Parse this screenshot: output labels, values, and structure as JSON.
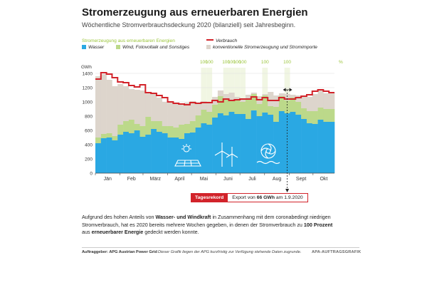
{
  "title": "Stromerzeugung aus erneuerbaren Energien",
  "subtitle": "Wöchentliche Stromverbrauchsdeckung 2020 (bilanziell) seit Jahresbeginn.",
  "legend": {
    "renewable_header": "Stromerzeugung aus erneuerbaren Energien",
    "water": "Wasser",
    "wind": "Wind, Fotovoltaik und Sonstiges",
    "consumption": "Verbrauch",
    "conventional": "konventionelle Stromerzeugung und Stromimporte"
  },
  "colors": {
    "water": "#2aa8e3",
    "wind": "#bcd98a",
    "conventional": "#ddd5cc",
    "consumption": "#d2232a",
    "hundred_band": "#f1f6e3",
    "hundred_text": "#9ac43a",
    "grid": "#dddddd"
  },
  "record": {
    "label": "Tagesrekord",
    "text_before": "Export von ",
    "value": "66 GWh",
    "text_after": " am 1.9.2020"
  },
  "description": {
    "p1": "Aufgrund des hohen Anteils von ",
    "b1": "Wasser- und Windkraft",
    "p2": " in Zusammenhang mit dem coronabedingt niedrigen Stromverbrauch, hat es 2020 bereits mehrere Wochen gegeben, in denen der Stromverbrauch zu ",
    "b2": "100 Prozent",
    "p3": " aus ",
    "b3": "erneuerbarer Energie",
    "p4": " gedeckt werden konnte."
  },
  "footer": {
    "source": "Auftraggeber: APG Austrian Power Grid",
    "note": "Dieser Grafik liegen der APG kurzfristig zur Verfügung stehende Daten zugrunde.",
    "tag": "APA-AUFTRAGSGRAFIK"
  },
  "chart_data": {
    "type": "bar",
    "title": "Stromerzeugung aus erneuerbaren Energien",
    "subtitle": "Wöchentliche Stromverbrauchsdeckung 2020 (bilanziell) seit Jahresbeginn.",
    "ylabel": "GWh",
    "ylim": [
      0,
      1400
    ],
    "yticks": [
      0,
      200,
      400,
      600,
      800,
      1000,
      1200,
      1400
    ],
    "stacked": true,
    "month_labels": [
      "Jän",
      "Feb",
      "März",
      "April",
      "Mai",
      "Juni",
      "Juli",
      "Aug",
      "Sept",
      "Okt"
    ],
    "month_start_weeks": [
      0,
      4.43,
      8.57,
      13.0,
      17.29,
      21.71,
      26.0,
      30.43,
      34.86,
      39.14
    ],
    "weeks": [
      1,
      2,
      3,
      4,
      5,
      6,
      7,
      8,
      9,
      10,
      11,
      12,
      13,
      14,
      15,
      16,
      17,
      18,
      19,
      20,
      21,
      22,
      23,
      24,
      25,
      26,
      27,
      28,
      29,
      30,
      31,
      32,
      33,
      34,
      35,
      36,
      37,
      38,
      39,
      40,
      41,
      42,
      43
    ],
    "series": [
      {
        "name": "Wasser",
        "values": [
          420,
          490,
          500,
          460,
          540,
          580,
          560,
          600,
          510,
          540,
          620,
          580,
          560,
          500,
          500,
          480,
          560,
          570,
          640,
          700,
          680,
          780,
          840,
          810,
          860,
          830,
          830,
          760,
          880,
          800,
          850,
          820,
          720,
          870,
          840,
          860,
          820,
          760,
          700,
          690,
          750,
          720,
          720
        ]
      },
      {
        "name": "Wind, Fotovoltaik und Sonstiges",
        "values": [
          80,
          60,
          60,
          60,
          140,
          150,
          190,
          90,
          150,
          250,
          110,
          150,
          100,
          160,
          140,
          200,
          130,
          160,
          170,
          190,
          180,
          180,
          240,
          230,
          160,
          190,
          170,
          280,
          230,
          170,
          240,
          120,
          210,
          210,
          180,
          200,
          180,
          150,
          170,
          180,
          170,
          180,
          180
        ]
      },
      {
        "name": "konventionelle Stromerzeugung und Stromimporte",
        "values": [
          860,
          840,
          750,
          700,
          570,
          490,
          430,
          480,
          500,
          330,
          400,
          330,
          340,
          330,
          330,
          290,
          300,
          280,
          160,
          120,
          140,
          110,
          80,
          70,
          110,
          50,
          30,
          60,
          20,
          110,
          20,
          200,
          160,
          40,
          90,
          40,
          90,
          170,
          200,
          240,
          260,
          220,
          230
        ]
      },
      {
        "name": "Verbrauch",
        "type": "line",
        "values": [
          1320,
          1410,
          1390,
          1340,
          1280,
          1270,
          1230,
          1210,
          1240,
          1130,
          1120,
          1090,
          1060,
          1000,
          980,
          970,
          960,
          990,
          980,
          990,
          990,
          1020,
          1000,
          1040,
          1020,
          1030,
          1040,
          1040,
          1070,
          1030,
          1060,
          1020,
          1020,
          1060,
          1040,
          1040,
          1060,
          1080,
          1100,
          1150,
          1170,
          1150,
          1130
        ]
      }
    ],
    "hundred_percent_weeks": [
      20,
      21,
      24,
      25,
      26,
      27,
      31,
      35
    ],
    "hundred_percent_label": "100",
    "percent_axis_label": "%",
    "annotation": {
      "week": 35,
      "label": "Tagesrekord",
      "text": "Export von 66 GWh am 1.9.2020"
    },
    "grid": true
  }
}
